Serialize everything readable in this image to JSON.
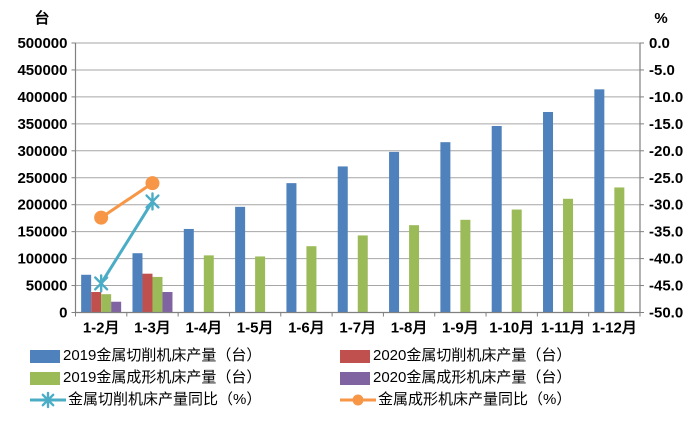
{
  "chart_data": {
    "type": "bar",
    "subtype": "grouped-bars-with-lines",
    "title": "",
    "categories": [
      "1-2月",
      "1-3月",
      "1-4月",
      "1-5月",
      "1-6月",
      "1-7月",
      "1-8月",
      "1-9月",
      "1-10月",
      "1-11月",
      "1-12月"
    ],
    "bar_series": [
      {
        "name": "2019金属切削机床产量（台）",
        "color": "#4F81BD",
        "axis": "left",
        "values": [
          70000,
          110000,
          155000,
          196000,
          240000,
          271000,
          298000,
          316000,
          346000,
          372000,
          414000
        ]
      },
      {
        "name": "2020金属切削机床产量（台）",
        "color": "#C0504D",
        "axis": "left",
        "values": [
          38000,
          72000,
          null,
          null,
          null,
          null,
          null,
          null,
          null,
          null,
          null
        ]
      },
      {
        "name": "2019金属成形机床产量（台）",
        "color": "#9BBB59",
        "axis": "left",
        "values": [
          34000,
          66000,
          106000,
          104000,
          123000,
          143000,
          162000,
          172000,
          191000,
          211000,
          232000
        ]
      },
      {
        "name": "2020金属成形机床产量（台）",
        "color": "#8064A2",
        "axis": "left",
        "values": [
          20000,
          38000,
          null,
          null,
          null,
          null,
          null,
          null,
          null,
          null,
          null
        ]
      }
    ],
    "line_series": [
      {
        "name": "金属切削机床产量同比（%）",
        "color": "#4BACC6",
        "marker": "asterisk",
        "axis": "right",
        "values": [
          -44.6,
          -29.4,
          null,
          null,
          null,
          null,
          null,
          null,
          null,
          null,
          null
        ]
      },
      {
        "name": "金属成形机床产量同比（%）",
        "color": "#F79646",
        "marker": "circle",
        "axis": "right",
        "values": [
          -32.4,
          -26.0,
          null,
          null,
          null,
          null,
          null,
          null,
          null,
          null,
          null
        ]
      }
    ],
    "left_axis": {
      "title": "台",
      "min": 0,
      "max": 500000,
      "step": 50000,
      "tick_labels": [
        "500000",
        "450000",
        "400000",
        "350000",
        "300000",
        "250000",
        "200000",
        "150000",
        "100000",
        "50000",
        "0"
      ]
    },
    "right_axis": {
      "title": "%",
      "min": -50,
      "max": 0,
      "step": 5,
      "tick_labels": [
        "0.0",
        "-5.0",
        "-10.0",
        "-15.0",
        "-20.0",
        "-25.0",
        "-30.0",
        "-35.0",
        "-40.0",
        "-45.0",
        "-50.0"
      ]
    },
    "grid": true,
    "legend_position": "bottom",
    "colors": {
      "gridline": "#A6A6A6",
      "axis": "#808080",
      "text": "#000000",
      "background": "#FFFFFF"
    }
  }
}
